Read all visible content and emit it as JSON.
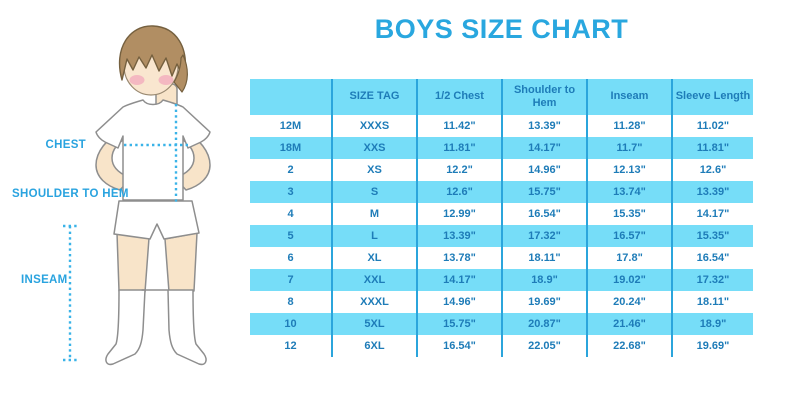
{
  "title": "BOYS SIZE CHART",
  "colors": {
    "accent_blue": "#29A7DF",
    "table_stripe_blue": "#76DDF8",
    "table_line_blue": "#2BA5DC",
    "table_text_blue": "#1E7CB8",
    "label_blue": "#29A3DF",
    "skin": "#F8E4C9",
    "hair_brown": "#B18E63",
    "cheek_pink": "#F2ADBD"
  },
  "diagram": {
    "chest_label": "CHEST",
    "shoulder_to_hem_label": "SHOULDER TO HEM",
    "inseam_label": "INSEAM"
  },
  "table": {
    "header_rows": [
      [
        "",
        "SIZE TAG",
        "1/2 Chest",
        "Shoulder to Hem",
        "Inseam",
        "Sleeve Length"
      ]
    ],
    "rows": [
      [
        "12M",
        "XXXS",
        "11.42\"",
        "13.39\"",
        "11.28\"",
        "11.02\""
      ],
      [
        "18M",
        "XXS",
        "11.81\"",
        "14.17\"",
        "11.7\"",
        "11.81\""
      ],
      [
        "2",
        "XS",
        "12.2\"",
        "14.96\"",
        "12.13\"",
        "12.6\""
      ],
      [
        "3",
        "S",
        "12.6\"",
        "15.75\"",
        "13.74\"",
        "13.39\""
      ],
      [
        "4",
        "M",
        "12.99\"",
        "16.54\"",
        "15.35\"",
        "14.17\""
      ],
      [
        "5",
        "L",
        "13.39\"",
        "17.32\"",
        "16.57\"",
        "15.35\""
      ],
      [
        "6",
        "XL",
        "13.78\"",
        "18.11\"",
        "17.8\"",
        "16.54\""
      ],
      [
        "7",
        "XXL",
        "14.17\"",
        "18.9\"",
        "19.02\"",
        "17.32\""
      ],
      [
        "8",
        "XXXL",
        "14.96\"",
        "19.69\"",
        "20.24\"",
        "18.11\""
      ],
      [
        "10",
        "5XL",
        "15.75\"",
        "20.87\"",
        "21.46\"",
        "18.9\""
      ],
      [
        "12",
        "6XL",
        "16.54\"",
        "22.05\"",
        "22.68\"",
        "19.69\""
      ]
    ]
  }
}
